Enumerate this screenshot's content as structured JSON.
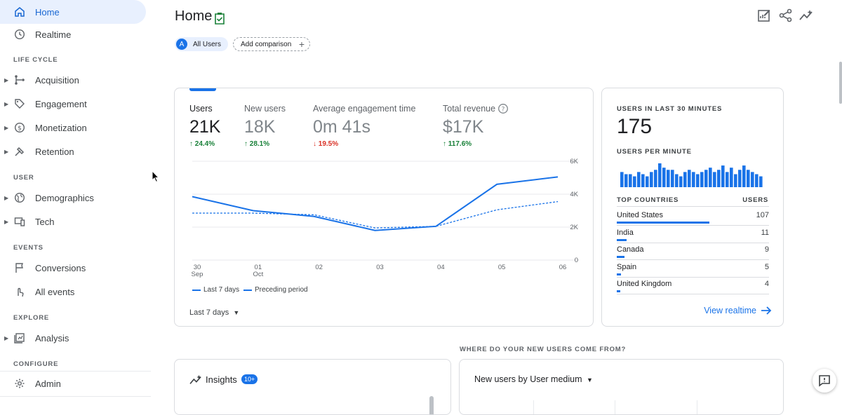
{
  "sidebar": {
    "home": "Home",
    "realtime": "Realtime",
    "sections": {
      "lifecycle": "LIFE CYCLE",
      "user": "USER",
      "events": "EVENTS",
      "explore": "EXPLORE",
      "configure": "CONFIGURE"
    },
    "items": {
      "acquisition": "Acquisition",
      "engagement": "Engagement",
      "monetization": "Monetization",
      "retention": "Retention",
      "demographics": "Demographics",
      "tech": "Tech",
      "conversions": "Conversions",
      "all_events": "All events",
      "analysis": "Analysis",
      "admin": "Admin"
    }
  },
  "header": {
    "title": "Home",
    "chip_users_avatar": "A",
    "chip_users": "All Users",
    "chip_compare": "Add comparison"
  },
  "metrics": [
    {
      "label": "Users",
      "value": "21K",
      "change": "↑ 24.4%",
      "dir": "up"
    },
    {
      "label": "New users",
      "value": "18K",
      "change": "↑ 28.1%",
      "dir": "up"
    },
    {
      "label": "Average engagement time",
      "value": "0m 41s",
      "change": "↓ 19.5%",
      "dir": "down"
    },
    {
      "label": "Total revenue",
      "value": "$17K",
      "change": "↑ 117.6%",
      "dir": "up"
    }
  ],
  "chart_data": {
    "type": "line",
    "categories": [
      "30 Sep",
      "01 Oct",
      "02",
      "03",
      "04",
      "05",
      "06"
    ],
    "x_top": [
      "30",
      "01",
      "02",
      "03",
      "04",
      "05",
      "06"
    ],
    "x_sub": [
      "Sep",
      "Oct",
      "",
      "",
      "",
      "",
      ""
    ],
    "y_ticks": [
      "0",
      "2K",
      "4K",
      "6K"
    ],
    "ylim": [
      0,
      6000
    ],
    "series": [
      {
        "name": "Last 7 days",
        "values": [
          3850,
          3000,
          2650,
          1800,
          2050,
          4600,
          5050
        ]
      },
      {
        "name": "Preceding period",
        "values": [
          2850,
          2850,
          2750,
          1950,
          2050,
          3050,
          3550
        ]
      }
    ]
  },
  "chart_footer": {
    "legend_current": "Last 7 days",
    "legend_previous": "Preceding period",
    "range": "Last 7 days"
  },
  "realtime": {
    "label_users": "USERS IN LAST 30 MINUTES",
    "value": "175",
    "label_per_minute": "USERS PER MINUTE",
    "per_minute": [
      7,
      6,
      6,
      5,
      7,
      6,
      5,
      7,
      8,
      11,
      9,
      8,
      8,
      6,
      5,
      7,
      8,
      7,
      6,
      7,
      8,
      9,
      7,
      8,
      10,
      7,
      9,
      6,
      8,
      10,
      8,
      7,
      6,
      5
    ],
    "col_countries": "TOP COUNTRIES",
    "col_users": "USERS",
    "countries": [
      {
        "name": "United States",
        "users": "107",
        "share": 107
      },
      {
        "name": "India",
        "users": "11",
        "share": 11
      },
      {
        "name": "Canada",
        "users": "9",
        "share": 9
      },
      {
        "name": "Spain",
        "users": "5",
        "share": 5
      },
      {
        "name": "United Kingdom",
        "users": "4",
        "share": 4
      }
    ],
    "view_link": "View realtime"
  },
  "bottom": {
    "question": "WHERE DO YOUR NEW USERS COME FROM?",
    "insights_title": "Insights",
    "insights_badge": "10+",
    "new_users_title": "New users by User medium"
  },
  "colors": {
    "accent": "#1a73e8",
    "up": "#188038",
    "down": "#d93025"
  }
}
